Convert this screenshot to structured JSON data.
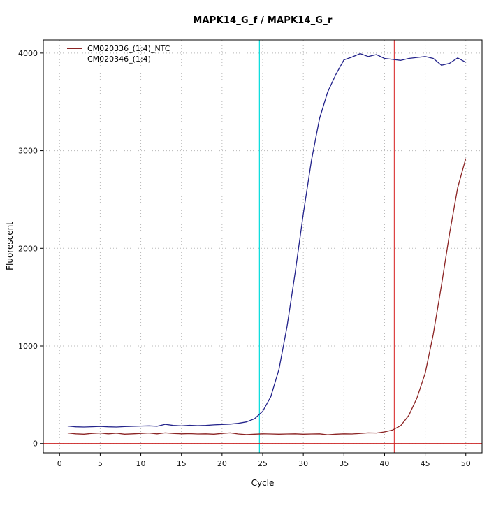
{
  "chart_data": {
    "type": "line",
    "title": "MAPK14_G_f / MAPK14_G_r",
    "xlabel": "Cycle",
    "ylabel": "Fluorescent",
    "xlim": [
      -2,
      52
    ],
    "ylim": [
      -95,
      4135
    ],
    "x_ticks": [
      0,
      5,
      10,
      15,
      20,
      25,
      30,
      35,
      40,
      45,
      50
    ],
    "y_ticks": [
      0,
      1000,
      2000,
      3000,
      4000
    ],
    "grid": true,
    "grid_color": "#b8b8b8",
    "legend_position": "top-left",
    "x": [
      1,
      2,
      3,
      4,
      5,
      6,
      7,
      8,
      9,
      10,
      11,
      12,
      13,
      14,
      15,
      16,
      17,
      18,
      19,
      20,
      21,
      22,
      23,
      24,
      25,
      26,
      27,
      28,
      29,
      30,
      31,
      32,
      33,
      34,
      35,
      36,
      37,
      38,
      39,
      40,
      41,
      42,
      43,
      44,
      45,
      46,
      47,
      48,
      49,
      50
    ],
    "series": [
      {
        "name": "CM020336_(1:4)_NTC",
        "color": "#8b2323",
        "values": [
          108,
          100,
          96,
          104,
          108,
          100,
          106,
          96,
          100,
          104,
          108,
          100,
          110,
          104,
          100,
          102,
          98,
          100,
          96,
          104,
          110,
          98,
          92,
          96,
          100,
          98,
          96,
          98,
          100,
          96,
          98,
          100,
          90,
          96,
          100,
          98,
          104,
          110,
          108,
          120,
          140,
          185,
          290,
          470,
          720,
          1120,
          1620,
          2150,
          2620,
          2920
        ]
      },
      {
        "name": "CM020346_(1:4)",
        "color": "#23238b",
        "values": [
          180,
          172,
          170,
          173,
          176,
          172,
          170,
          174,
          177,
          180,
          182,
          178,
          198,
          186,
          182,
          188,
          184,
          186,
          192,
          196,
          200,
          208,
          222,
          255,
          330,
          480,
          760,
          1200,
          1750,
          2350,
          2900,
          3330,
          3600,
          3780,
          3930,
          3960,
          3995,
          3965,
          3985,
          3945,
          3935,
          3925,
          3945,
          3955,
          3965,
          3945,
          3875,
          3895,
          3950,
          3905
        ]
      }
    ],
    "markers": {
      "vlines": [
        {
          "x": 24.6,
          "color": "#00dddd"
        },
        {
          "x": 41.2,
          "color": "#dd4444"
        }
      ],
      "hlines": [
        {
          "y": 0,
          "color": "#cc2222"
        }
      ]
    }
  }
}
